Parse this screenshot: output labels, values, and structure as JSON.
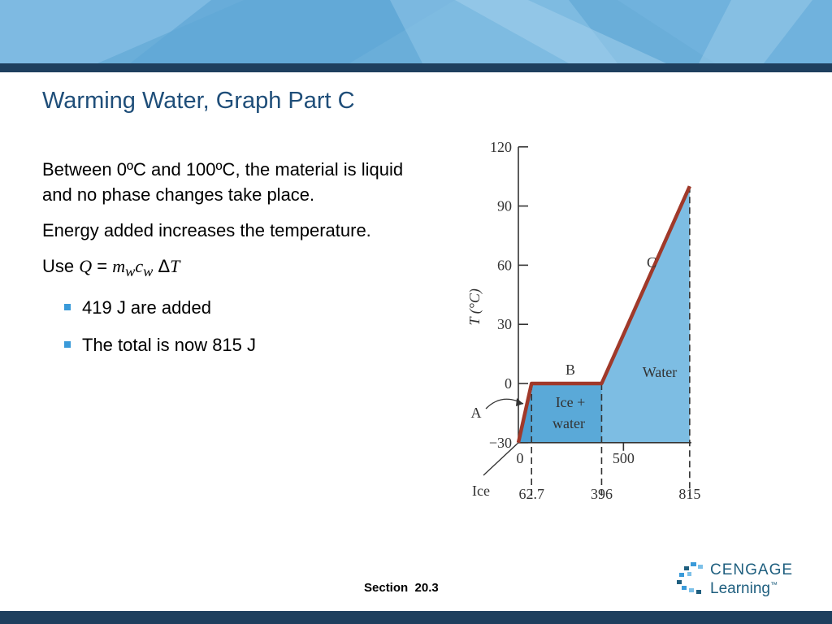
{
  "slide": {
    "title": "Warming Water, Graph Part C",
    "paragraphs": [
      "Between 0ºC and 100ºC, the material is liquid and no phase changes take place.",
      "Energy added increases the temperature."
    ],
    "formula": {
      "prefix": "Use ",
      "q": "Q",
      "eq": " = ",
      "m": "m",
      "m_sub": "w",
      "c": "c",
      "c_sub": "w",
      "delta": " Δ",
      "t": "T"
    },
    "bullets": [
      "419 J are added",
      "The total is now 815 J"
    ],
    "footer": "Section  20.3",
    "logo": {
      "line1": "CENGAGE",
      "line2": "Learning",
      "tm": "™"
    },
    "colors": {
      "title": "#1f4e79",
      "banner": "#6aaed9",
      "bar": "#1e3f5e",
      "bullet": "#3a9ad9",
      "curve": "#a0392a",
      "fill": "#7dbde3"
    }
  },
  "chart_data": {
    "type": "line",
    "ylabel": "T (°C)",
    "ylim": [
      -30,
      120
    ],
    "y_ticks": [
      -30,
      0,
      30,
      60,
      90,
      120
    ],
    "y_tick_labels": [
      "−30",
      "0",
      "30",
      "60",
      "90",
      "120"
    ],
    "x_ticks_upper": [
      {
        "value": 0,
        "label": "0"
      },
      {
        "value": 500,
        "label": "500"
      }
    ],
    "x_ticks_lower": [
      {
        "value": 62.7,
        "label": "62.7"
      },
      {
        "value": 396,
        "label": "396"
      },
      {
        "value": 815,
        "label": "815"
      }
    ],
    "series": [
      {
        "x": [
          0,
          62.7,
          396,
          815
        ],
        "y": [
          -30,
          0,
          0,
          100
        ]
      }
    ],
    "annotations": {
      "segment_a": "A",
      "segment_b": "B",
      "segment_c": "C",
      "region_ice": "Ice",
      "region_mix_line1": "Ice +",
      "region_mix_line2": "water",
      "region_water": "Water"
    }
  }
}
